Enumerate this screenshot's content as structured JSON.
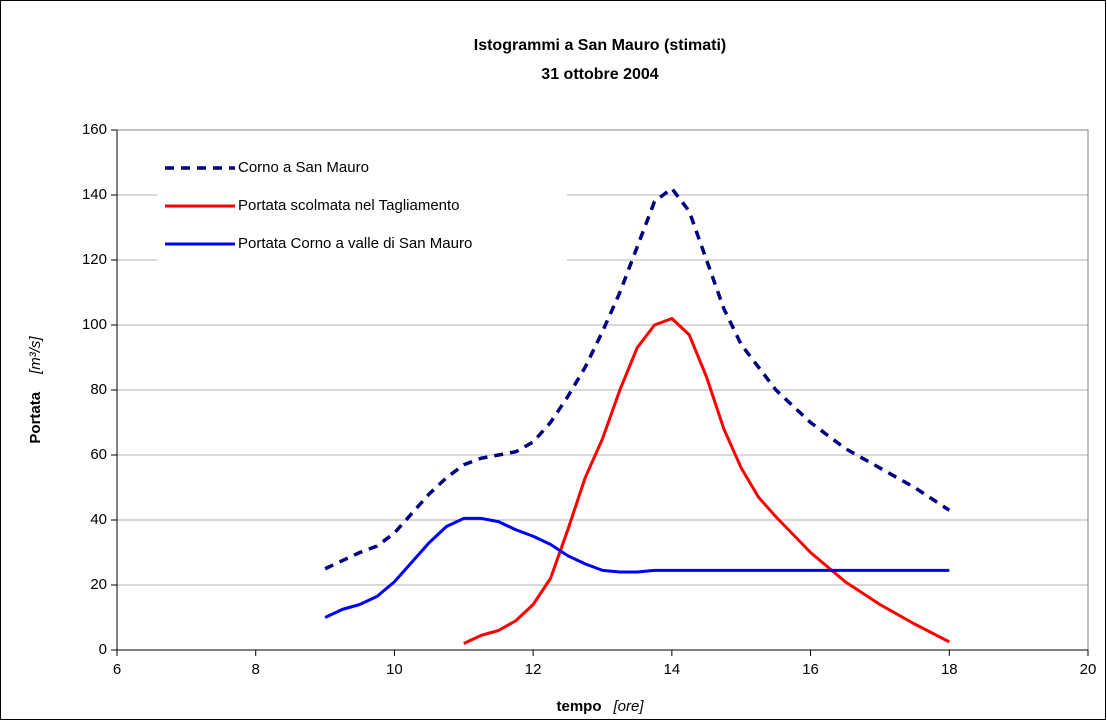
{
  "chart_data": {
    "type": "line",
    "title": "Istogrammi a San Mauro (stimati)",
    "subtitle": "31 ottobre 2004",
    "xlabel": "tempo",
    "xunit": "[ore]",
    "ylabel": "Portata",
    "yunit": "[m³/s]",
    "xlim": [
      6,
      20
    ],
    "xticks": [
      6,
      8,
      10,
      12,
      14,
      16,
      18,
      20
    ],
    "ylim": [
      0,
      160
    ],
    "yticks": [
      0,
      20,
      40,
      60,
      80,
      100,
      120,
      140,
      160
    ],
    "grid": true,
    "legend": "upper left",
    "series": [
      {
        "name": "Corno a San Mauro",
        "color": "#000080",
        "dash": true,
        "x": [
          9,
          9.5,
          9.75,
          10,
          10.25,
          10.5,
          10.75,
          11,
          11.25,
          11.5,
          11.75,
          12,
          12.25,
          12.5,
          12.75,
          13,
          13.25,
          13.5,
          13.75,
          14,
          14.25,
          14.5,
          14.75,
          15,
          15.5,
          16,
          16.5,
          17,
          17.5,
          18
        ],
        "values": [
          25,
          30,
          32,
          36,
          42,
          48,
          53,
          57,
          59,
          60,
          61,
          64,
          70,
          78,
          87,
          98,
          110,
          124,
          138,
          142,
          135,
          120,
          105,
          94,
          80,
          70,
          62,
          56,
          50,
          43
        ]
      },
      {
        "name": "Portata scolmata nel Tagliamento",
        "color": "#ff0000",
        "dash": false,
        "x": [
          11,
          11.25,
          11.5,
          11.75,
          12,
          12.25,
          12.5,
          12.75,
          13,
          13.25,
          13.5,
          13.75,
          14,
          14.25,
          14.5,
          14.75,
          15,
          15.25,
          15.5,
          16,
          16.5,
          17,
          17.5,
          18
        ],
        "values": [
          2,
          4.5,
          6,
          9,
          14,
          22,
          37,
          53,
          65,
          80,
          93,
          100,
          102,
          97,
          84,
          68,
          56,
          47,
          41,
          30,
          21,
          14,
          8,
          2.5
        ]
      },
      {
        "name": "Portata Corno a valle di San Mauro",
        "color": "#0000ff",
        "dash": false,
        "x": [
          9,
          9.25,
          9.5,
          9.75,
          10,
          10.25,
          10.5,
          10.75,
          11,
          11.25,
          11.5,
          11.75,
          12,
          12.25,
          12.5,
          12.75,
          13,
          13.25,
          13.5,
          13.75,
          14,
          18
        ],
        "values": [
          10,
          12.5,
          14,
          16.5,
          21,
          27,
          33,
          38,
          40.5,
          40.5,
          39.5,
          37,
          35,
          32.5,
          29,
          26.5,
          24.5,
          24,
          24,
          24.5,
          24.5,
          24.5
        ]
      }
    ]
  }
}
